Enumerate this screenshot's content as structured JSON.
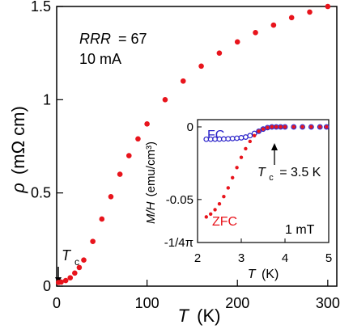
{
  "colors": {
    "main_series": "#e8141c",
    "fc_series": "#2a22c9",
    "zfc_series": "#e8141c",
    "axis": "#000000"
  },
  "chart_data": [
    {
      "type": "scatter",
      "xlabel_var": "T",
      "xlabel_unit": "(K)",
      "ylabel_var": "ρ",
      "ylabel_unit": "(mΩ cm)",
      "xlim": [
        0,
        310
      ],
      "ylim": [
        0,
        1.5
      ],
      "x_ticks": [
        0,
        100,
        200,
        300
      ],
      "y_ticks": [
        0,
        0.5,
        1,
        1.5
      ],
      "x_tick_labels": [
        "0",
        "100",
        "200",
        "300"
      ],
      "y_tick_labels": [
        "0",
        "0.5",
        "1",
        "1.5"
      ],
      "grid": false,
      "annotations": {
        "rrr_var": "RRR",
        "rrr_value": "= 67",
        "current": "10 mA",
        "tc_var": "T",
        "tc_sub": "c"
      },
      "series": [
        {
          "x": [
            2,
            5,
            10,
            15,
            20,
            25,
            30,
            40,
            50,
            60,
            70,
            80,
            90,
            100,
            120,
            140,
            160,
            180,
            200,
            220,
            240,
            260,
            280,
            300
          ],
          "y": [
            0.02,
            0.022,
            0.03,
            0.045,
            0.07,
            0.1,
            0.14,
            0.24,
            0.36,
            0.48,
            0.6,
            0.7,
            0.79,
            0.87,
            1.0,
            1.1,
            1.18,
            1.25,
            1.31,
            1.36,
            1.4,
            1.44,
            1.47,
            1.5
          ]
        }
      ]
    },
    {
      "type": "scatter",
      "xlabel_var": "T",
      "xlabel_unit": "(K)",
      "ylabel_var": "M/H",
      "ylabel_unit": "(emu/cm³)",
      "xlim": [
        2,
        5
      ],
      "ylim": [
        -0.0796,
        0.005
      ],
      "x_ticks": [
        2,
        3,
        4,
        5
      ],
      "x_tick_labels": [
        "2",
        "3",
        "4",
        "5"
      ],
      "y_ticks": [
        0,
        -0.05,
        -0.0796
      ],
      "y_tick_labels": [
        "0",
        "-0.05",
        "-1/4π"
      ],
      "grid": false,
      "annotations": {
        "tc_var": "T",
        "tc_sub": "c",
        "tc_value": "= 3.5 K",
        "field": "1 mT"
      },
      "series": [
        {
          "name": "FC",
          "x": [
            2.2,
            2.3,
            2.4,
            2.5,
            2.6,
            2.7,
            2.8,
            2.9,
            3.0,
            3.1,
            3.2,
            3.3,
            3.4,
            3.5,
            3.6,
            3.7,
            3.8,
            3.9,
            4.0,
            4.2,
            4.4,
            4.6,
            4.8,
            4.95
          ],
          "y": [
            -0.0085,
            -0.0085,
            -0.0084,
            -0.0084,
            -0.0083,
            -0.0082,
            -0.008,
            -0.0078,
            -0.0075,
            -0.007,
            -0.006,
            -0.0045,
            -0.003,
            -0.0015,
            -0.0005,
            0,
            0,
            0,
            0,
            0,
            0,
            0,
            0,
            0
          ]
        },
        {
          "name": "ZFC",
          "x": [
            2.2,
            2.3,
            2.4,
            2.5,
            2.6,
            2.7,
            2.8,
            2.9,
            3.0,
            3.1,
            3.2,
            3.3,
            3.4,
            3.5,
            3.6,
            3.7,
            3.8,
            3.9,
            4.0,
            4.2,
            4.4,
            4.6,
            4.8,
            4.95
          ],
          "y": [
            -0.062,
            -0.06,
            -0.057,
            -0.053,
            -0.048,
            -0.042,
            -0.035,
            -0.028,
            -0.021,
            -0.015,
            -0.01,
            -0.006,
            -0.003,
            -0.0015,
            -0.0005,
            0,
            0,
            0,
            0,
            0,
            0,
            0,
            0,
            0
          ]
        }
      ]
    }
  ]
}
